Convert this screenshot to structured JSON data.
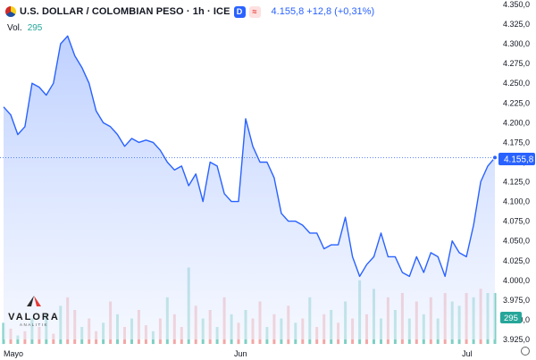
{
  "header": {
    "title": "U.S. DOLLAR / COLOMBIAN PESO · 1h · ICE",
    "badge_d": "D",
    "badge_alert": "≈",
    "quote": "4.155,8 +12,8 (+0,31%)"
  },
  "volume": {
    "label": "Vol.",
    "value": "295"
  },
  "logo": {
    "name": "VALORA",
    "sub": "ANALITIK"
  },
  "colors": {
    "line": "#2962ff",
    "fill_top": "#a9c1ff",
    "fill_bottom": "#eef3ff",
    "vol_up": "#7fcfc4",
    "vol_down": "#f3a7a7",
    "last_price": "#2962ff",
    "vol_label": "#26a69a"
  },
  "icons": {
    "settings": "gear-icon",
    "flag": "us-colombia-flag-icon"
  },
  "chart_data": {
    "type": "area",
    "x_labels": [
      "Mayo",
      "Jun",
      "Jul"
    ],
    "ylim": [
      3925,
      4350
    ],
    "y_ticks": [
      "4.350,0",
      "4.325,0",
      "4.300,0",
      "4.275,0",
      "4.250,0",
      "4.225,0",
      "4.200,0",
      "4.175,0",
      "4.150,0",
      "4.125,0",
      "4.100,0",
      "4.075,0",
      "4.050,0",
      "4.025,0",
      "4.000,0",
      "3.975,0",
      "3.950,0",
      "3.925,0"
    ],
    "last_price": "4.155,8",
    "last_volume": "295",
    "price": [
      4220,
      4210,
      4185,
      4195,
      4250,
      4245,
      4235,
      4250,
      4300,
      4310,
      4285,
      4270,
      4250,
      4215,
      4200,
      4195,
      4185,
      4170,
      4180,
      4175,
      4178,
      4175,
      4165,
      4150,
      4140,
      4145,
      4120,
      4135,
      4100,
      4150,
      4145,
      4110,
      4100,
      4100,
      4205,
      4170,
      4150,
      4150,
      4130,
      4085,
      4075,
      4075,
      4070,
      4060,
      4060,
      4040,
      4045,
      4045,
      4080,
      4030,
      4005,
      4020,
      4030,
      4060,
      4030,
      4030,
      4010,
      4005,
      4030,
      4010,
      4035,
      4030,
      4005,
      4050,
      4035,
      4030,
      4070,
      4125,
      4145,
      4155.8
    ],
    "volume": [
      0.25,
      0.18,
      0.1,
      0.15,
      0.3,
      0.2,
      0.35,
      0.12,
      0.45,
      0.55,
      0.4,
      0.2,
      0.3,
      0.15,
      0.25,
      0.5,
      0.35,
      0.2,
      0.3,
      0.4,
      0.22,
      0.15,
      0.3,
      0.55,
      0.35,
      0.2,
      0.9,
      0.45,
      0.3,
      0.4,
      0.2,
      0.55,
      0.35,
      0.25,
      0.4,
      0.3,
      0.5,
      0.2,
      0.35,
      0.3,
      0.45,
      0.25,
      0.3,
      0.55,
      0.2,
      0.35,
      0.4,
      0.25,
      0.5,
      0.3,
      0.75,
      0.35,
      0.65,
      0.3,
      0.55,
      0.4,
      0.6,
      0.3,
      0.5,
      0.35,
      0.55,
      0.3,
      0.6,
      0.5,
      0.45,
      0.6,
      0.55,
      0.65,
      0.6,
      0.6
    ],
    "volume_up": [
      1,
      0,
      1,
      0,
      1,
      0,
      1,
      0,
      1,
      0,
      0,
      1,
      0,
      0,
      1,
      0,
      1,
      0,
      1,
      0,
      0,
      1,
      0,
      1,
      0,
      0,
      1,
      0,
      1,
      0,
      1,
      0,
      1,
      0,
      1,
      0,
      0,
      1,
      0,
      1,
      0,
      1,
      0,
      1,
      0,
      0,
      1,
      0,
      1,
      0,
      1,
      0,
      1,
      1,
      0,
      1,
      0,
      1,
      0,
      1,
      0,
      1,
      0,
      1,
      1,
      0,
      1,
      0,
      1,
      1
    ]
  }
}
